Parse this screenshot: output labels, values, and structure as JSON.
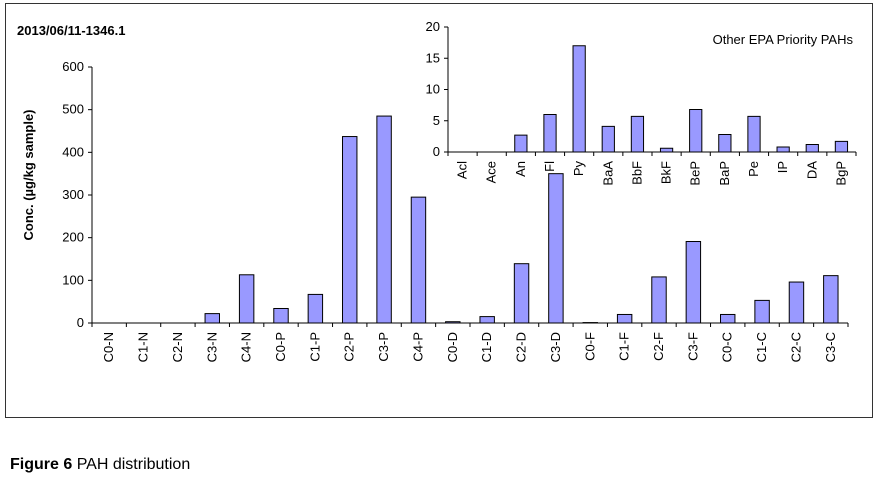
{
  "caption": {
    "label": "Figure 6",
    "text": "PAH distribution"
  },
  "chart_data": [
    {
      "type": "bar",
      "title": "2013/06/11-1346.1",
      "ylabel": "Conc. (µg/kg sample)",
      "xlabel": "",
      "ylim": [
        0,
        600
      ],
      "yticks": [
        0,
        100,
        200,
        300,
        400,
        500,
        600
      ],
      "categories": [
        "C0-N",
        "C1-N",
        "C2-N",
        "C3-N",
        "C4-N",
        "C0-P",
        "C1-P",
        "C2-P",
        "C3-P",
        "C4-P",
        "C0-D",
        "C1-D",
        "C2-D",
        "C3-D",
        "C0-F",
        "C1-F",
        "C2-F",
        "C3-F",
        "C0-C",
        "C1-C",
        "C2-C",
        "C3-C"
      ],
      "values": [
        0,
        0,
        0,
        22,
        113,
        34,
        67,
        437,
        485,
        295,
        3,
        15,
        139,
        350,
        1,
        20,
        108,
        191,
        20,
        53,
        96,
        111
      ],
      "color": "#9999ff",
      "grid": false
    },
    {
      "type": "bar",
      "title": "Other EPA Priority PAHs",
      "ylabel": "",
      "xlabel": "",
      "ylim": [
        0,
        20
      ],
      "yticks": [
        0,
        5,
        10,
        15,
        20
      ],
      "categories": [
        "Acl",
        "Ace",
        "An",
        "Fl",
        "Py",
        "BaA",
        "BbF",
        "BkF",
        "BeP",
        "BaP",
        "Pe",
        "IP",
        "DA",
        "BgP"
      ],
      "values": [
        0,
        0,
        2.7,
        6,
        17,
        4.1,
        5.7,
        0.6,
        6.8,
        2.8,
        5.7,
        0.8,
        1.2,
        1.7
      ],
      "color": "#9999ff",
      "grid": false
    }
  ]
}
